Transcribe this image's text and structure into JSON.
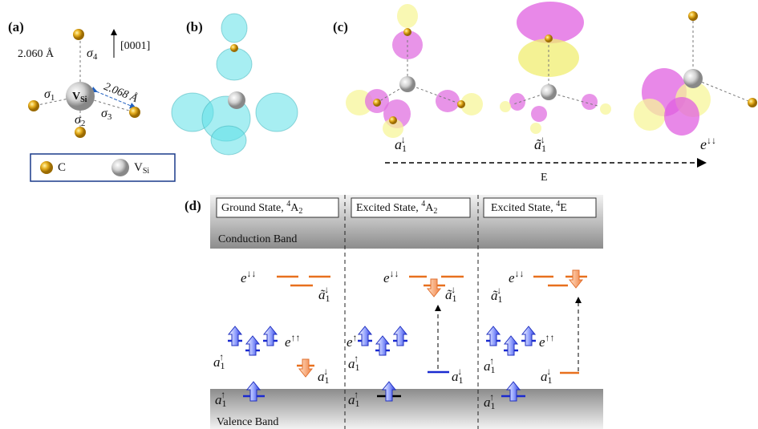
{
  "panels": {
    "a": "(a)",
    "b": "(b)",
    "c": "(c)",
    "d": "(d)"
  },
  "panel_a": {
    "bond_axial": "2.060 Å",
    "bond_basal": "2.068 Å",
    "direction": "[0001]",
    "sigma": [
      {
        "text": "σ",
        "sub": "1"
      },
      {
        "text": "σ",
        "sub": "2"
      },
      {
        "text": "σ",
        "sub": "3"
      },
      {
        "text": "σ",
        "sub": "4"
      }
    ],
    "vacancy": {
      "text": "V",
      "sub": "Si"
    },
    "legend": [
      {
        "text": "C"
      },
      {
        "text": "V",
        "sub": "Si"
      }
    ]
  },
  "panel_c": {
    "orbitals": [
      {
        "text": "a",
        "sub": "1",
        "sup": "↓"
      },
      {
        "text": "ã",
        "sub": "1",
        "sup": "↓"
      },
      {
        "text": "e",
        "sup": "↓↓"
      }
    ],
    "axis": "E"
  },
  "panel_d": {
    "conduction": "Conduction Band",
    "valence": "Valence Band",
    "columns": [
      {
        "title": {
          "pre": "Ground State, ",
          "presup": "4",
          "text": "A",
          "sub": "2"
        },
        "levels": [
          {
            "text": "e",
            "sup": "↑↑"
          },
          {
            "text": "a",
            "sub": "1",
            "sup": "↑"
          },
          {
            "text": "e",
            "sup": "↓↓"
          },
          {
            "text": "ã",
            "sub": "1",
            "sup": "↓"
          },
          {
            "text": "a",
            "sub": "1",
            "sup": "↓"
          },
          {
            "text": "a",
            "sub": "1",
            "sup": "↑"
          }
        ]
      },
      {
        "title": {
          "pre": "Excited State, ",
          "presup": "4",
          "text": "A",
          "sub": "2"
        },
        "levels": [
          {
            "text": "e",
            "sup": "↑"
          },
          {
            "text": "a",
            "sub": "1",
            "sup": "↑"
          },
          {
            "text": "e",
            "sup": "↓↓"
          },
          {
            "text": "ã",
            "sub": "1",
            "sup": "↓"
          },
          {
            "text": "a",
            "sub": "1",
            "sup": "↓"
          },
          {
            "text": "a",
            "sub": "1",
            "sup": "↑"
          }
        ]
      },
      {
        "title": {
          "pre": "Excited State, ",
          "presup": "4",
          "text": "E"
        },
        "levels": [
          {
            "text": "e",
            "sup": "↑↑"
          },
          {
            "text": "a",
            "sub": "1",
            "sup": "↑"
          },
          {
            "text": "e",
            "sup": "↓↓"
          },
          {
            "text": "ã",
            "sub": "1",
            "sup": "↓"
          },
          {
            "text": "a",
            "sub": "1",
            "sup": "↓"
          },
          {
            "text": "a",
            "sub": "1",
            "sup": "↑"
          }
        ]
      }
    ]
  }
}
